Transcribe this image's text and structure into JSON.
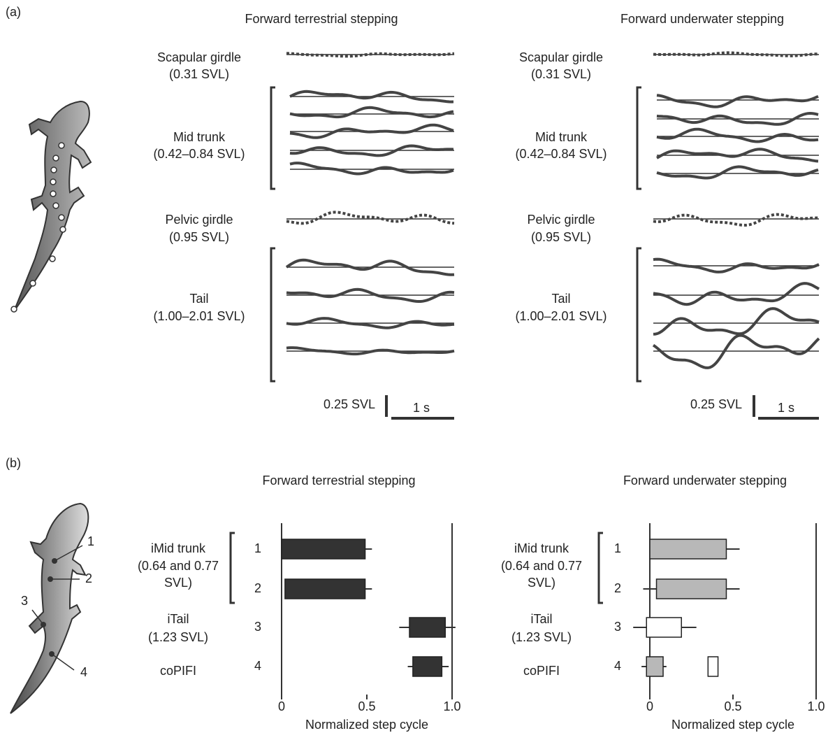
{
  "panel_labels": [
    "(a)",
    "(b)"
  ],
  "panel_a": {
    "columns": [
      {
        "title": "Forward terrestrial stepping"
      },
      {
        "title": "Forward underwater stepping"
      }
    ],
    "row_labels": [
      [
        "Scapular girdle",
        "(0.31 SVL)"
      ],
      [
        "Mid trunk",
        "(0.42–0.84 SVL)"
      ],
      [
        "Pelvic girdle",
        "(0.95 SVL)"
      ],
      [
        "Tail",
        "(1.00–2.01 SVL)"
      ]
    ],
    "scale_bar": [
      "0.25 SVL",
      "1 s"
    ]
  },
  "panel_b": {
    "figure_labels": [
      "1",
      "2",
      "3",
      "4"
    ]
  },
  "chart_data": [
    {
      "type": "floating-bar",
      "title": "Forward terrestrial stepping",
      "xlabel": "Normalized step cycle",
      "categories": [
        "1",
        "2",
        "3",
        "4"
      ],
      "row_labels": [
        [
          "iMid trunk",
          "(0.64 and 0.77",
          "SVL)"
        ],
        [
          "iTail",
          "(1.23 SVL)"
        ],
        [
          "coPIFI"
        ]
      ],
      "xlim": [
        0,
        1
      ],
      "xticks": [
        0,
        0.5,
        {
          "value": 1,
          "label": "1.0"
        }
      ],
      "bars": [
        [
          {
            "start": 0,
            "end": 0.49,
            "end_error": 0.04,
            "color": "#333333"
          }
        ],
        [
          {
            "start": 0.02,
            "end": 0.49,
            "end_error": 0.04,
            "color": "#333333"
          }
        ],
        [
          {
            "start": 0.75,
            "end": 0.96,
            "start_error": 0.06,
            "end_error": 0.06,
            "color": "#333333"
          }
        ],
        [
          {
            "start": 0.77,
            "end": 0.94,
            "start_error": 0.03,
            "end_error": 0.04,
            "color": "#333333"
          }
        ]
      ]
    },
    {
      "type": "floating-bar",
      "title": "Forward underwater stepping",
      "xlabel": "Normalized step cycle",
      "categories": [
        "1",
        "2",
        "3",
        "4"
      ],
      "row_labels": [
        [
          "iMid trunk",
          "(0.64 and 0.77",
          "SVL)"
        ],
        [
          "iTail",
          "(1.23 SVL)"
        ],
        [
          "coPIFI"
        ]
      ],
      "xlim": [
        0,
        1
      ],
      "xticks": [
        0,
        0.5,
        {
          "value": 1,
          "label": "1.0"
        }
      ],
      "bars": [
        [
          {
            "start": 0,
            "end": 0.46,
            "end_error": 0.08,
            "color": "#b8b8b8"
          }
        ],
        [
          {
            "start": 0.04,
            "end": 0.46,
            "start_error": 0.08,
            "end_error": 0.08,
            "color": "#b8b8b8"
          }
        ],
        [
          {
            "start": -0.02,
            "end": 0.19,
            "start_error": 0.08,
            "end_error": 0.09,
            "color": "#ffffff"
          }
        ],
        [
          {
            "start": -0.02,
            "end": 0.08,
            "start_error": 0.03,
            "end_error": 0.02,
            "color": "#b8b8b8"
          },
          {
            "start": 0.35,
            "end": 0.41,
            "color": "#ffffff"
          }
        ]
      ]
    }
  ]
}
